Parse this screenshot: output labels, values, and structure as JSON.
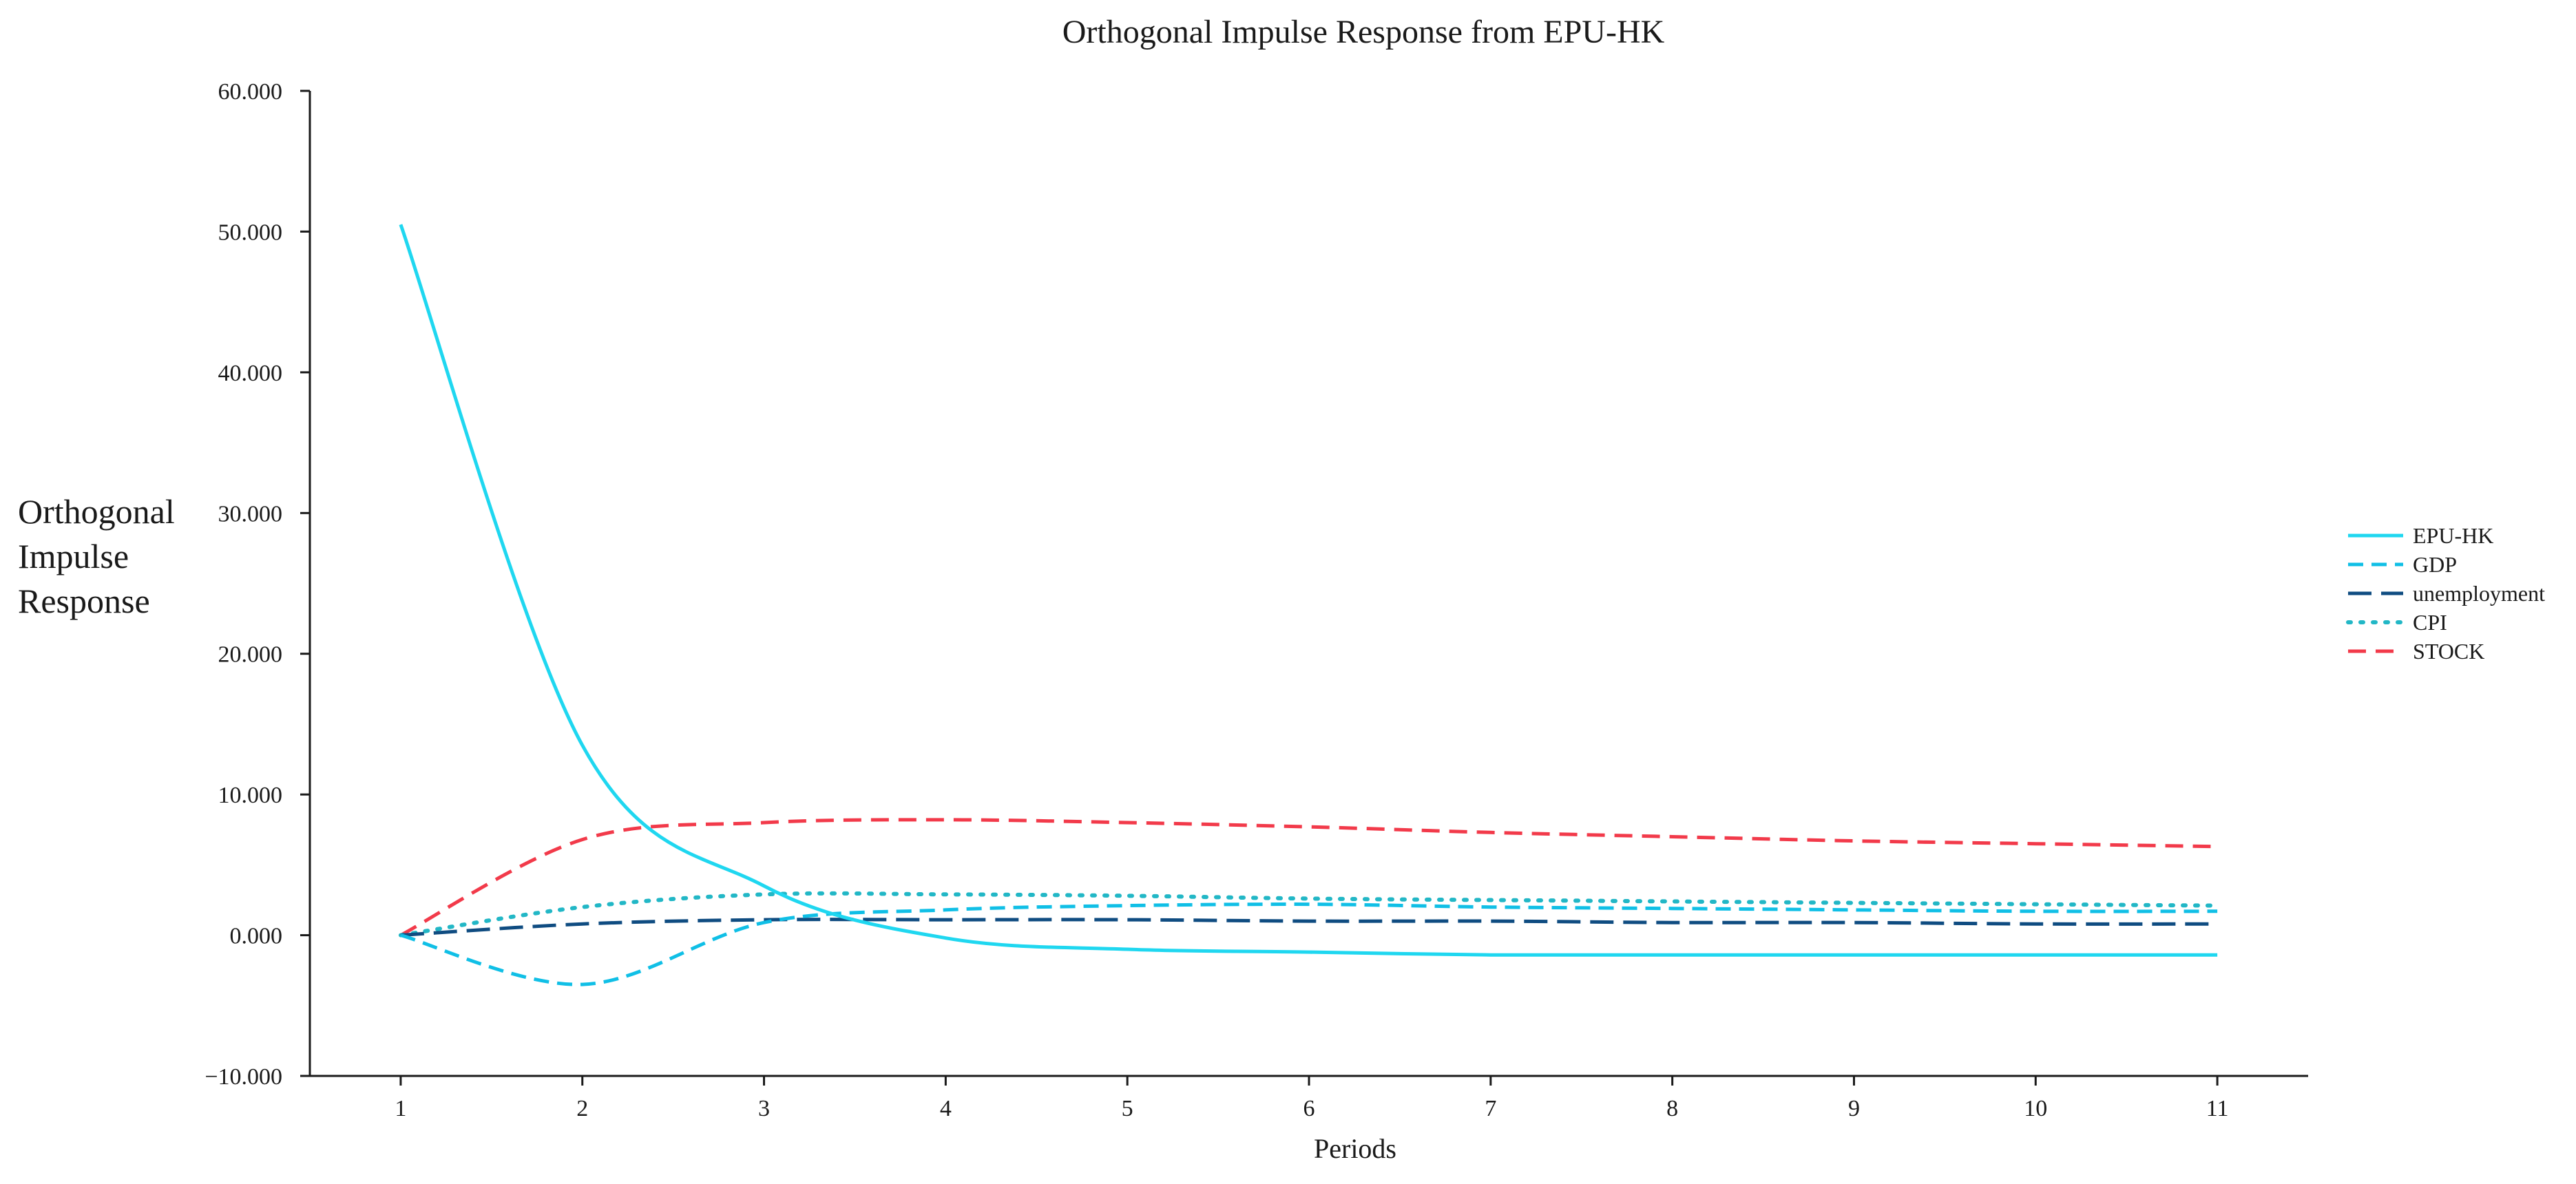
{
  "chart_data": {
    "type": "line",
    "title": "Orthogonal Impulse Response from EPU-HK",
    "xlabel": "Periods",
    "ylabel_lines": [
      "Orthogonal",
      "Impulse",
      "Response"
    ],
    "x": [
      1,
      2,
      3,
      4,
      5,
      6,
      7,
      8,
      9,
      10,
      11
    ],
    "xticks": [
      "1",
      "2",
      "3",
      "4",
      "5",
      "6",
      "7",
      "8",
      "9",
      "10",
      "11"
    ],
    "ylim": [
      -10,
      60
    ],
    "xlim": [
      0.5,
      11.5
    ],
    "yticks": [
      {
        "value": 60,
        "label": "60.000"
      },
      {
        "value": 50,
        "label": "50.000"
      },
      {
        "value": 40,
        "label": "40.000"
      },
      {
        "value": 30,
        "label": "30.000"
      },
      {
        "value": 20,
        "label": "20.000"
      },
      {
        "value": 10,
        "label": "10.000"
      },
      {
        "value": 0,
        "label": "0.000"
      },
      {
        "value": -10,
        "label": "−10.000"
      }
    ],
    "grid": false,
    "legend_position": "right",
    "series": [
      {
        "name": "EPU-HK",
        "color": "#1fd7f0",
        "dash": "solid",
        "values": [
          50.5,
          13.5,
          3.5,
          -0.2,
          -1.0,
          -1.2,
          -1.4,
          -1.4,
          -1.4,
          -1.4,
          -1.4
        ]
      },
      {
        "name": "GDP",
        "color": "#10bfe6",
        "dash": "medium",
        "values": [
          0.0,
          -3.5,
          0.9,
          1.8,
          2.1,
          2.2,
          2.0,
          1.9,
          1.8,
          1.7,
          1.7
        ]
      },
      {
        "name": "unemployment",
        "color": "#0f4c81",
        "dash": "long",
        "values": [
          0.0,
          0.8,
          1.1,
          1.1,
          1.1,
          1.0,
          1.0,
          0.9,
          0.9,
          0.8,
          0.8
        ]
      },
      {
        "name": "CPI",
        "color": "#22b7c6",
        "dash": "dotted",
        "values": [
          0.0,
          2.0,
          2.9,
          2.9,
          2.8,
          2.6,
          2.5,
          2.4,
          2.3,
          2.2,
          2.1
        ]
      },
      {
        "name": "STOCK",
        "color": "#f23a4a",
        "dash": "short",
        "values": [
          0.0,
          6.8,
          8.0,
          8.2,
          8.0,
          7.7,
          7.3,
          7.0,
          6.7,
          6.5,
          6.3
        ]
      }
    ]
  }
}
